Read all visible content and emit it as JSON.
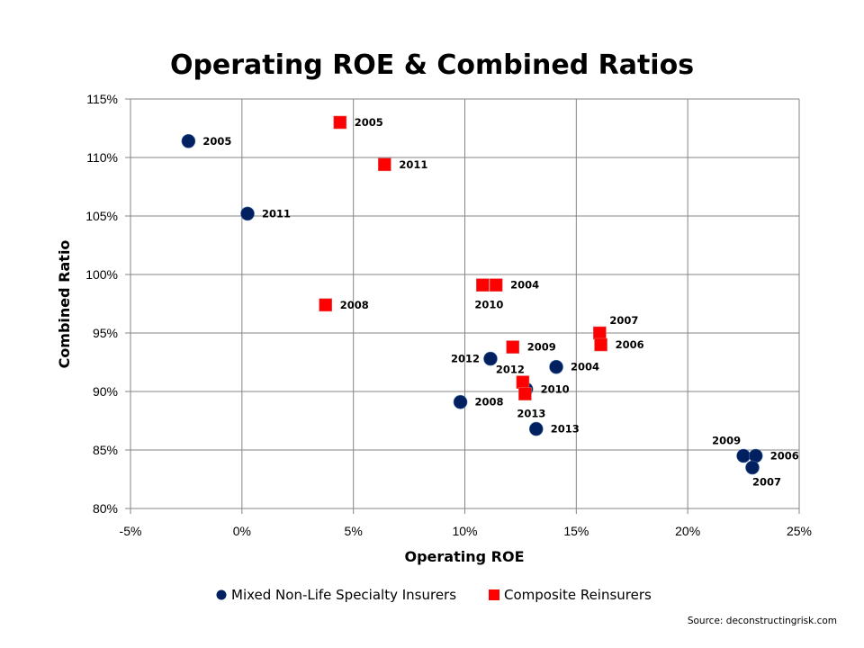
{
  "chart_data": {
    "type": "scatter",
    "title": "Operating ROE & Combined Ratios",
    "xlabel": "Operating ROE",
    "ylabel": "Combined Ratio",
    "xlim": [
      -5,
      25
    ],
    "ylim": [
      80,
      115
    ],
    "x_ticks": [
      -5,
      0,
      5,
      10,
      15,
      20,
      25
    ],
    "x_tick_labels": [
      "-5%",
      "0%",
      "5%",
      "10%",
      "15%",
      "20%",
      "25%"
    ],
    "y_ticks": [
      80,
      85,
      90,
      95,
      100,
      105,
      110,
      115
    ],
    "y_tick_labels": [
      "80%",
      "85%",
      "90%",
      "95%",
      "100%",
      "105%",
      "110%",
      "115%"
    ],
    "grid": true,
    "legend_position": "bottom",
    "series": [
      {
        "name": "Mixed Non-Life Specialty Insurers",
        "marker": "circle",
        "color": "#002060",
        "points": [
          {
            "label": "2005",
            "x": -2.4,
            "y": 111.4,
            "label_pos": "right"
          },
          {
            "label": "2011",
            "x": 0.25,
            "y": 105.2,
            "label_pos": "right"
          },
          {
            "label": "2012",
            "x": 11.15,
            "y": 92.8,
            "label_pos": "left"
          },
          {
            "label": "2004",
            "x": 14.1,
            "y": 92.1,
            "label_pos": "right"
          },
          {
            "label": "2010",
            "x": 12.75,
            "y": 90.2,
            "label_pos": "right"
          },
          {
            "label": "2008",
            "x": 9.8,
            "y": 89.1,
            "label_pos": "right"
          },
          {
            "label": "2013",
            "x": 13.2,
            "y": 86.8,
            "label_pos": "right"
          },
          {
            "label": "2009",
            "x": 22.5,
            "y": 84.5,
            "label_pos": "above-left"
          },
          {
            "label": "2006",
            "x": 23.05,
            "y": 84.5,
            "label_pos": "right"
          },
          {
            "label": "2007",
            "x": 22.9,
            "y": 83.5,
            "label_pos": "below"
          }
        ]
      },
      {
        "name": "Composite Reinsurers",
        "marker": "square",
        "color": "#ff0000",
        "points": [
          {
            "label": "2005",
            "x": 4.4,
            "y": 113.0,
            "label_pos": "right"
          },
          {
            "label": "2011",
            "x": 6.4,
            "y": 109.4,
            "label_pos": "right"
          },
          {
            "label": "2008",
            "x": 3.75,
            "y": 97.4,
            "label_pos": "right"
          },
          {
            "label": "2010",
            "x": 10.8,
            "y": 99.1,
            "label_pos": "below"
          },
          {
            "label": "2004",
            "x": 11.4,
            "y": 99.1,
            "label_pos": "right"
          },
          {
            "label": "2009",
            "x": 12.15,
            "y": 93.8,
            "label_pos": "right"
          },
          {
            "label": "2012",
            "x": 12.6,
            "y": 90.8,
            "label_pos": "above-left"
          },
          {
            "label": "2013",
            "x": 12.7,
            "y": 89.8,
            "label_pos": "below"
          },
          {
            "label": "2007",
            "x": 16.05,
            "y": 95.0,
            "label_pos": "above-right"
          },
          {
            "label": "2006",
            "x": 16.1,
            "y": 94.0,
            "label_pos": "right"
          }
        ]
      }
    ],
    "source": "Source: deconstructingrisk.com"
  }
}
